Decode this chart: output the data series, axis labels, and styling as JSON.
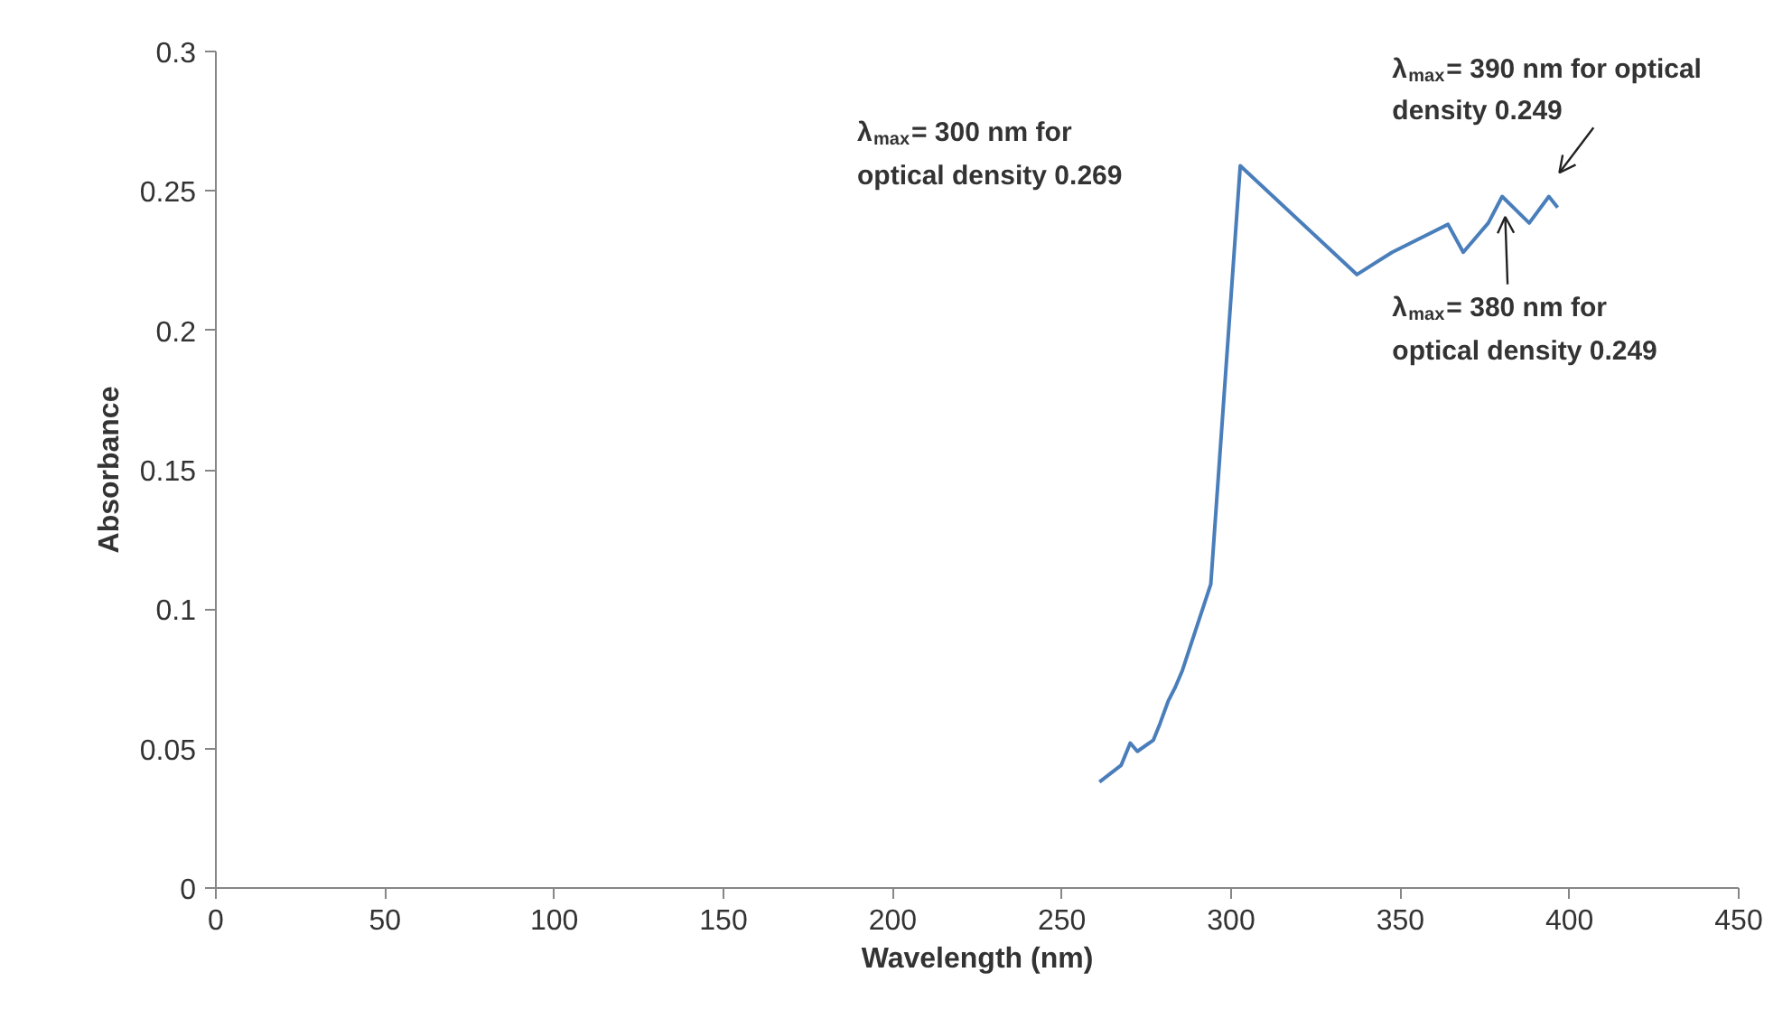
{
  "chart_data": {
    "type": "line",
    "xlabel": "Wavelength (nm)",
    "ylabel": "Absorbance",
    "x": [
      261.1,
      267.5,
      270.2,
      272.3,
      277,
      279,
      281.4,
      283.5,
      285.6,
      294,
      302.7,
      337.2,
      347.6,
      364.1,
      368.6,
      376,
      380.1,
      388.1,
      393.9,
      396.5
    ],
    "series": [
      {
        "color": "#4a7ebb",
        "values": [
          0.038,
          0.044,
          0.052,
          0.049,
          0.053,
          0.059,
          0.067,
          0.072,
          0.078,
          0.109,
          0.259,
          0.22,
          0.228,
          0.238,
          0.228,
          0.2385,
          0.248,
          0.2385,
          0.248,
          0.244
        ]
      }
    ],
    "xlim": [
      0,
      450
    ],
    "xticks": [
      0,
      50,
      100,
      150,
      200,
      250,
      300,
      350,
      400,
      450
    ],
    "ylim": [
      0,
      0.3
    ],
    "yticks": [
      0,
      0.05,
      0.1,
      0.15,
      0.2,
      0.25,
      0.3
    ],
    "grid": false,
    "marker": "none",
    "line_style": "solid",
    "annotations": [
      "λ$_{max}$= 300 nm for\noptical density 0.269",
      "λ$_{max}$= 390 nm for optical\ndensity 0.249",
      "λ$_{max}$= 380 nm for\noptical density 0.249"
    ]
  }
}
